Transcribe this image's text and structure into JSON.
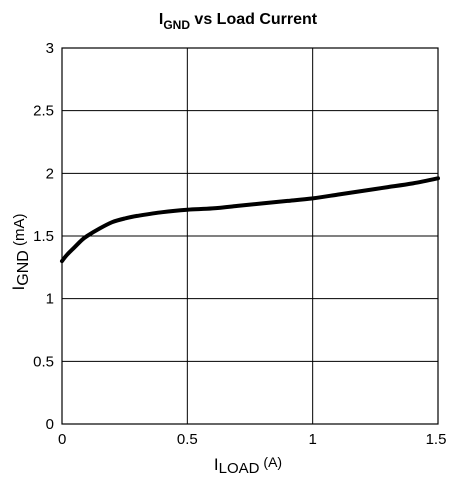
{
  "chart_data": {
    "type": "line",
    "title": {
      "main": "I",
      "sub": "GND",
      "rest": " vs Load Current"
    },
    "xlabel": {
      "main": "I",
      "sub": "LOAD",
      "rest": " (A)"
    },
    "ylabel": {
      "main": "I",
      "sub": "GND",
      "rest": " (mA)"
    },
    "xlim": [
      0,
      1.5
    ],
    "ylim": [
      0,
      3
    ],
    "xticks": [
      0,
      0.5,
      1,
      1.5
    ],
    "xtick_labels": [
      "0",
      "0.5",
      "1",
      "1.5"
    ],
    "yticks": [
      0,
      0.5,
      1,
      1.5,
      2,
      2.5,
      3
    ],
    "ytick_labels": [
      "0",
      "0.5",
      "1",
      "1.5",
      "2",
      "2.5",
      "3"
    ],
    "grid": true,
    "x": [
      0,
      0.02,
      0.05,
      0.08,
      0.1,
      0.15,
      0.2,
      0.25,
      0.3,
      0.4,
      0.5,
      0.6,
      0.7,
      0.8,
      0.9,
      1.0,
      1.1,
      1.2,
      1.3,
      1.4,
      1.5
    ],
    "y": [
      1.3,
      1.35,
      1.41,
      1.47,
      1.5,
      1.56,
      1.61,
      1.64,
      1.66,
      1.69,
      1.71,
      1.72,
      1.74,
      1.76,
      1.78,
      1.8,
      1.83,
      1.86,
      1.89,
      1.92,
      1.96
    ]
  }
}
